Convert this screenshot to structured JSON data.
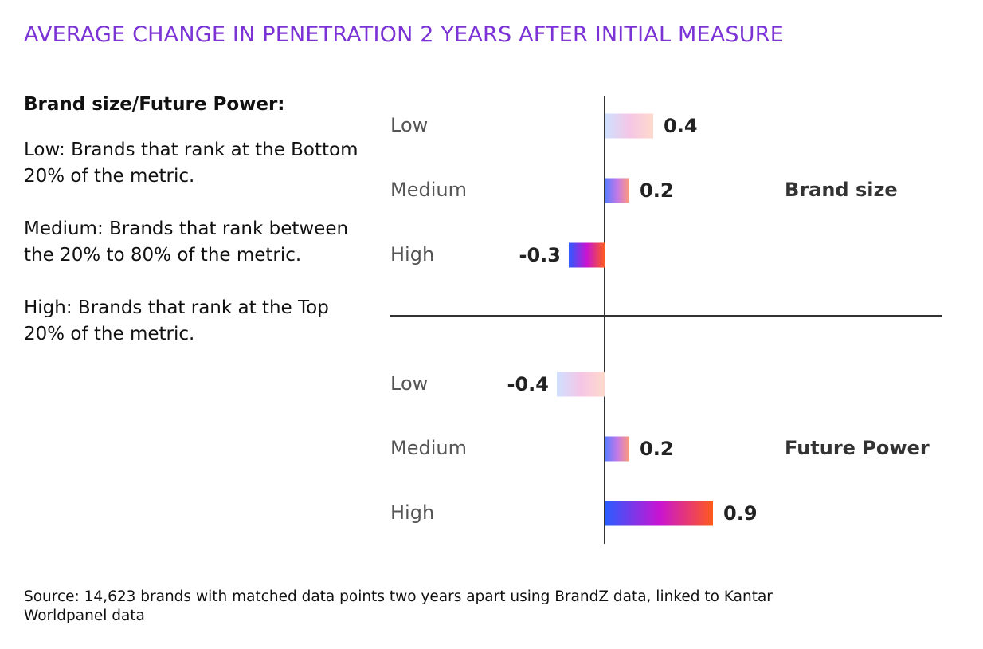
{
  "title": "AVERAGE CHANGE IN PENETRATION 2 YEARS AFTER INITIAL MEASURE",
  "legend": {
    "heading": "Brand size/Future Power:",
    "items": [
      "Low: Brands that rank at the Bottom 20% of the metric.",
      "Medium: Brands that rank between the 20% to 80% of the metric.",
      "High: Brands that rank at the Top 20% of the metric."
    ]
  },
  "source": "Source: 14,623 brands with matched data points two years apart using BrandZ data, linked to Kantar Worldpanel data",
  "colors": {
    "title": "#7b33d6",
    "low_gradient": [
      "#cfe0ff",
      "#f5c6e6",
      "#ffd9cc"
    ],
    "medium_gradient": [
      "#5b7cff",
      "#c479e8",
      "#ff9a7a"
    ],
    "high_gradient": [
      "#2a5cff",
      "#c814d2",
      "#ff5a1f"
    ]
  },
  "chart_data": {
    "type": "bar",
    "orientation": "horizontal",
    "categories": [
      "Low",
      "Medium",
      "High"
    ],
    "groups": [
      {
        "name": "Brand size",
        "values": [
          0.4,
          0.2,
          -0.3
        ],
        "value_labels": [
          "0.4",
          "0.2",
          "-0.3"
        ]
      },
      {
        "name": "Future Power",
        "values": [
          -0.4,
          0.2,
          0.9
        ],
        "value_labels": [
          "-0.4",
          "0.2",
          "0.9"
        ]
      }
    ],
    "xlim": [
      -0.4,
      0.9
    ]
  }
}
